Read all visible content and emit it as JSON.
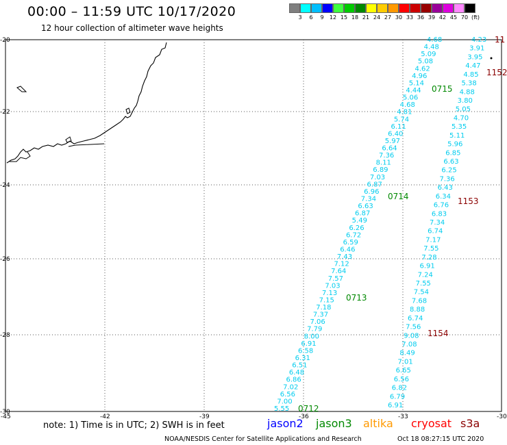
{
  "header": {
    "title": "00:00 – 11:59 UTC 10/17/2020",
    "subtitle": "12 hour collection of altimeter wave heights"
  },
  "colorbar": {
    "labels": [
      "3",
      "6",
      "9",
      "12",
      "15",
      "18",
      "21",
      "24",
      "27",
      "30",
      "33",
      "36",
      "39",
      "42",
      "45",
      "70",
      "(ft)"
    ],
    "colors": [
      "#7f7f7f",
      "#00ffff",
      "#00bfff",
      "#0000ff",
      "#3fff3f",
      "#00cc00",
      "#008800",
      "#ffff00",
      "#ffcc00",
      "#ff9900",
      "#ff0000",
      "#cc0000",
      "#990000",
      "#990099",
      "#dd00dd",
      "#ff88ff",
      "#000000"
    ]
  },
  "map": {
    "lat_labels": [
      "-20",
      "-22",
      "-24",
      "-26",
      "-28",
      "-30"
    ],
    "lon_labels": [
      "-45",
      "-42",
      "-39",
      "-36",
      "-33",
      "-30"
    ],
    "colors": {
      "wave": "#00ccee",
      "jason3": "#008800",
      "cryosat": "#8b0000",
      "blue": "#0000cc"
    },
    "track_left": [
      "4.68",
      "4.48",
      "5.09",
      "5.08",
      "4.62",
      "4.96",
      "5.14",
      "4.44",
      "5.06",
      "4.68",
      "4.81",
      "5.74",
      "6.11",
      "6.40",
      "5.97",
      "6.64",
      "7.36",
      "8.11",
      "6.89",
      "7.03",
      "6.87",
      "6.96",
      "7.34",
      "6.63",
      "6.87",
      "5.49",
      "6.26",
      "6.72",
      "6.59",
      "6.46",
      "7.43",
      "7.12",
      "7.64",
      "7.57",
      "7.03",
      "7.13",
      "7.15",
      "7.18",
      "7.37",
      "7.06",
      "7.79",
      "8.00",
      "6.91",
      "6.58",
      "6.31",
      "6.51",
      "6.48",
      "6.86",
      "7.02",
      "6.56",
      "7.00",
      "5.55"
    ],
    "track_right": [
      "4.23",
      "3.91",
      "3.95",
      "4.47",
      "4.85",
      "5.38",
      "4.88",
      "3.80",
      "5.05",
      "4.70",
      "5.35",
      "5.11",
      "5.96",
      "6.85",
      "6.63",
      "6.25",
      "7.36",
      "6.43",
      "6.34",
      "6.76",
      "6.83",
      "7.34",
      "6.74",
      "7.17",
      "7.55",
      "7.28",
      "6.91",
      "7.24",
      "7.55",
      "7.54",
      "7.68",
      "8.88",
      "6.74",
      "7.56",
      "9.08",
      "7.08",
      "8.49",
      "7.01",
      "6.65",
      "6.56",
      "6.82",
      "6.79",
      "6.91"
    ],
    "jason3_times": [
      "0715",
      "0714",
      "0713",
      "0712"
    ],
    "cryosat_times": [
      "11",
      "1152",
      "1153",
      "1154"
    ]
  },
  "legend": {
    "note": "note: 1) Time is in UTC; 2) SWH is in feet",
    "jason2": "jason2",
    "jason3": "jason3",
    "altika": "altika",
    "cryosat": "cryosat",
    "s3a": "s3a"
  },
  "footer": {
    "credit": "NOAA/NESDIS Center for Satellite Applications and Research",
    "timestamp": "Oct 18 08:27:15 UTC 2020"
  }
}
